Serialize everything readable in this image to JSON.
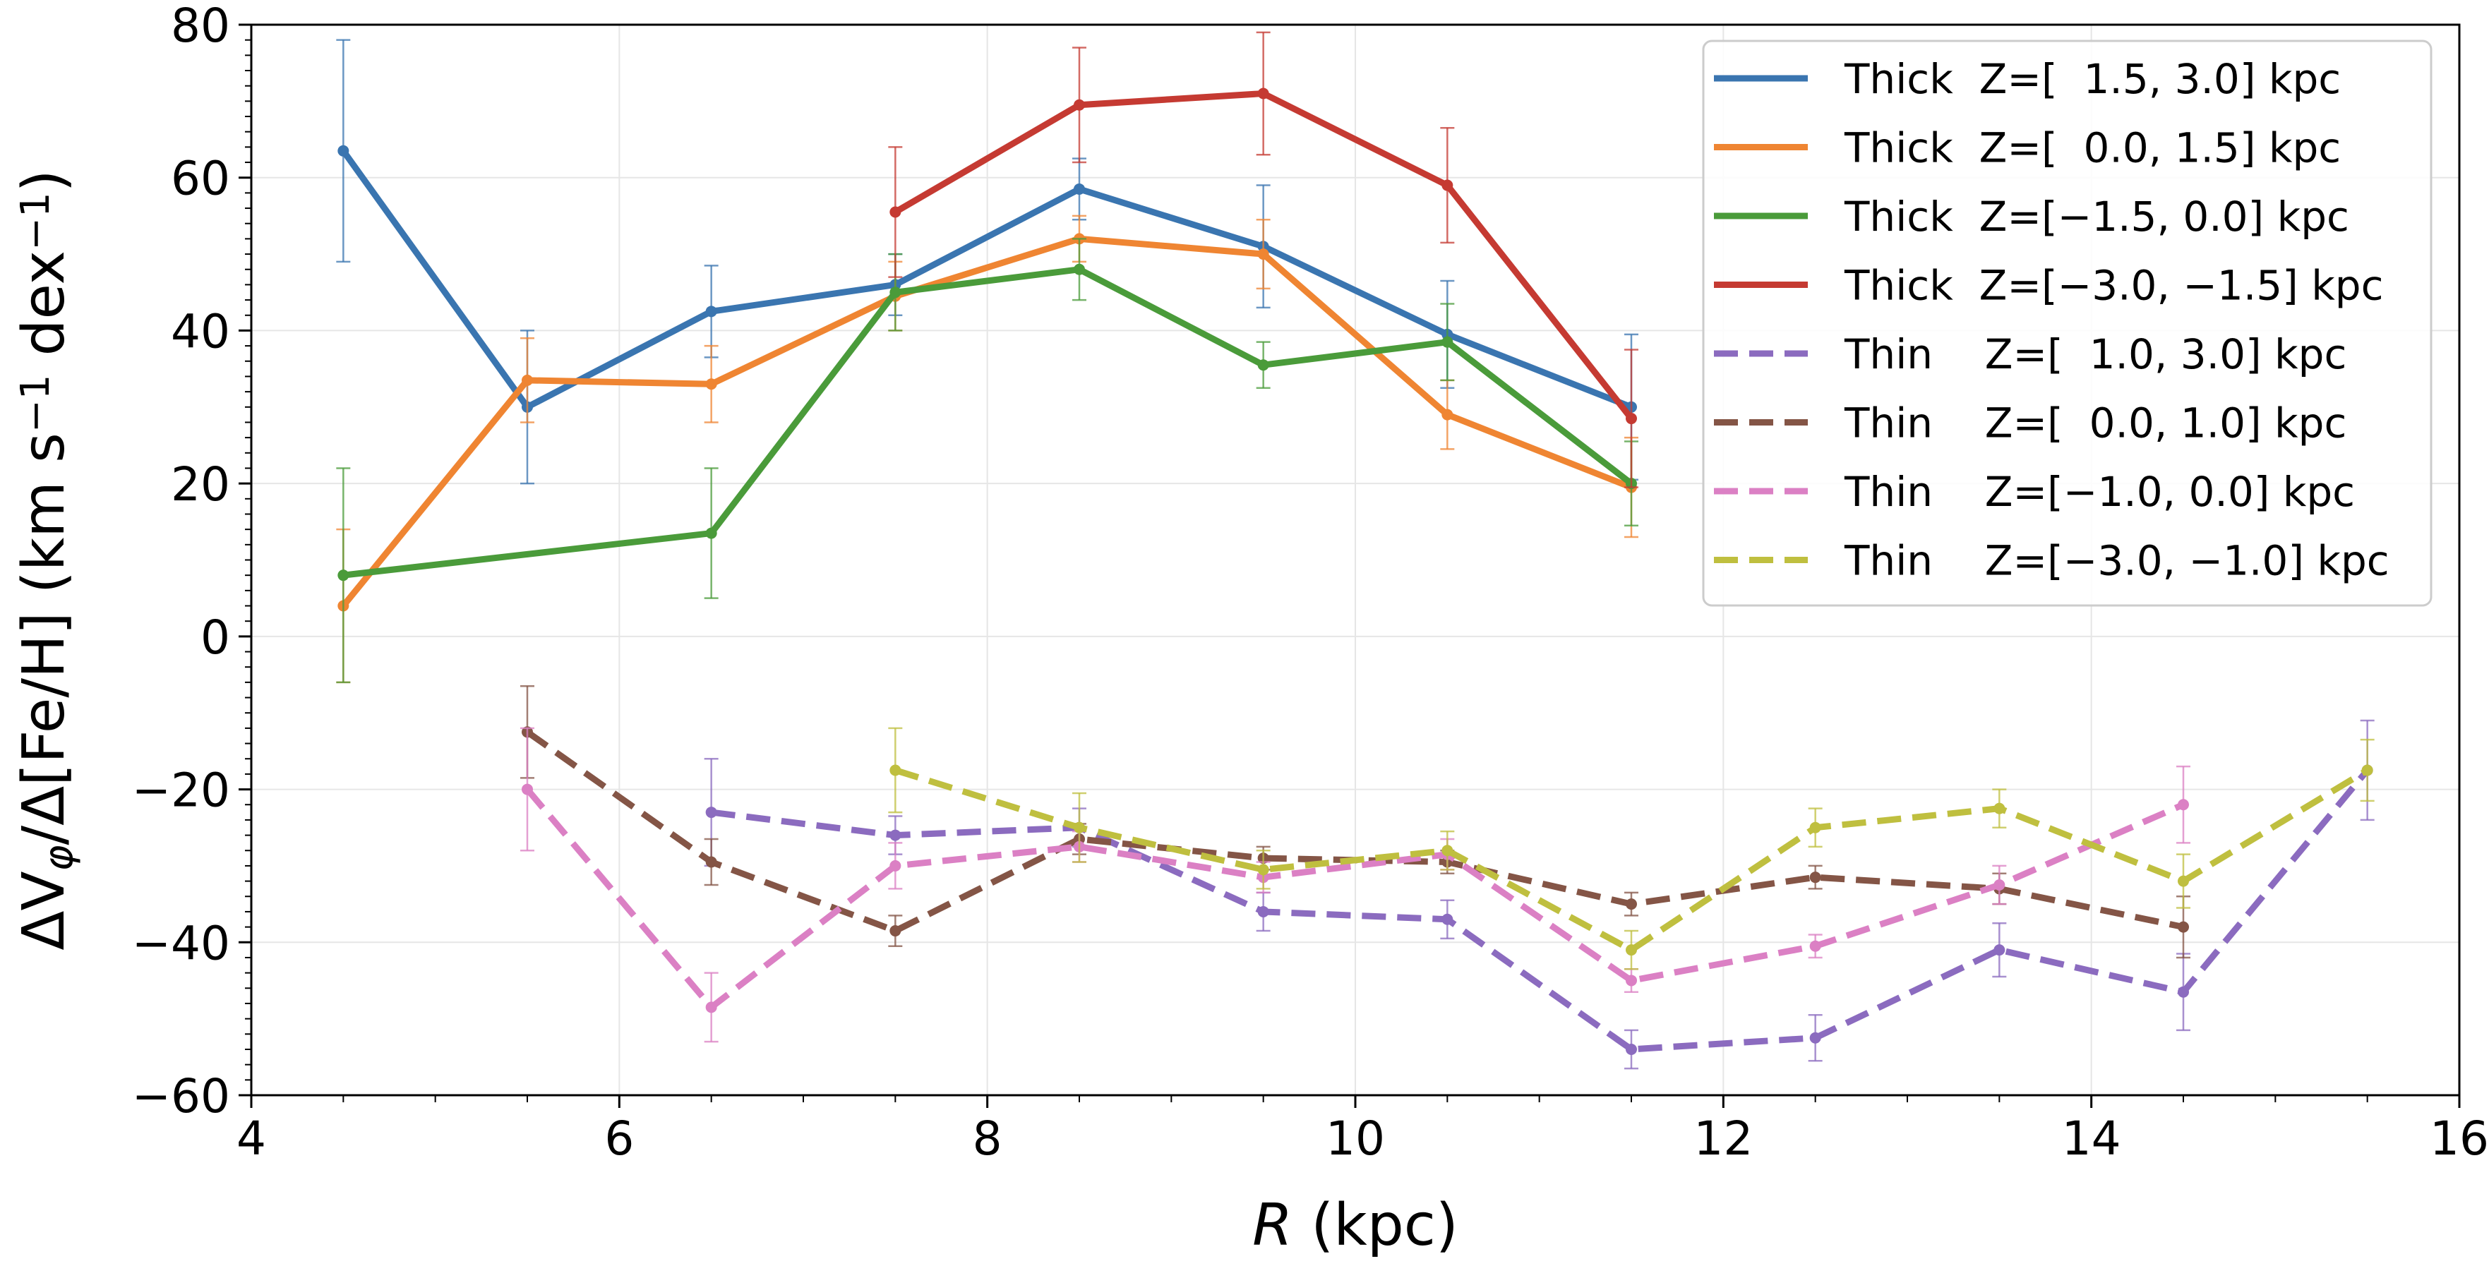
{
  "chart_data": {
    "type": "line",
    "xlabel": "R (kpc)",
    "ylabel": "ΔV_φ/Δ[Fe/H] (km s^-1 dex^-1)",
    "xlim": [
      4,
      16
    ],
    "ylim": [
      -60,
      80
    ],
    "xticks": [
      4,
      6,
      8,
      10,
      12,
      14,
      16
    ],
    "yticks": [
      -60,
      -40,
      -20,
      0,
      20,
      40,
      60,
      80
    ],
    "grid": true,
    "legend_position": "top-right",
    "series": [
      {
        "name": "Thick  Z=[  1.5, 3.0] kpc",
        "color": "#3a75b0",
        "dash": false,
        "x": [
          4.5,
          5.5,
          6.5,
          7.5,
          8.5,
          9.5,
          10.5,
          11.5
        ],
        "y": [
          63.5,
          30,
          42.5,
          46,
          58.5,
          51,
          39.5,
          30
        ],
        "err": [
          14.5,
          10,
          6,
          4,
          4,
          8,
          7,
          9.5
        ]
      },
      {
        "name": "Thick  Z=[  0.0, 1.5] kpc",
        "color": "#ef8532",
        "dash": false,
        "x": [
          4.5,
          5.5,
          6.5,
          7.5,
          8.5,
          9.5,
          10.5,
          11.5
        ],
        "y": [
          4,
          33.5,
          33,
          44.5,
          52,
          50,
          29,
          19.5
        ],
        "err": [
          10,
          5.5,
          5,
          4.5,
          3,
          4.5,
          4.5,
          6.5
        ]
      },
      {
        "name": "Thick  Z=[−1.5, 0.0] kpc",
        "color": "#4a9b3a",
        "dash": false,
        "x": [
          4.5,
          6.5,
          7.5,
          8.5,
          9.5,
          10.5,
          11.5
        ],
        "y": [
          8,
          13.5,
          45,
          48,
          35.5,
          38.5,
          20
        ],
        "err": [
          14,
          8.5,
          5,
          4,
          3,
          5,
          5.5
        ]
      },
      {
        "name": "Thick  Z=[−3.0, −1.5] kpc",
        "color": "#c53a32",
        "dash": false,
        "x": [
          7.5,
          8.5,
          9.5,
          10.5,
          11.5
        ],
        "y": [
          55.5,
          69.5,
          71,
          59,
          28.5
        ],
        "err": [
          8.5,
          7.5,
          8,
          7.5,
          9
        ]
      },
      {
        "name": "Thin    Z=[  1.0, 3.0] kpc",
        "color": "#8b6bbf",
        "dash": true,
        "x": [
          6.5,
          7.5,
          8.5,
          9.5,
          10.5,
          11.5,
          12.5,
          13.5,
          14.5,
          15.5
        ],
        "y": [
          -23,
          -26,
          -25,
          -36,
          -37,
          -54,
          -52.5,
          -41,
          -46.5,
          -17.5
        ],
        "err": [
          7,
          2.5,
          2.5,
          2.5,
          2.5,
          2.5,
          3,
          3.5,
          5,
          6.5
        ]
      },
      {
        "name": "Thin    Z=[  0.0, 1.0] kpc",
        "color": "#845546",
        "dash": true,
        "x": [
          5.5,
          6.5,
          7.5,
          8.5,
          9.5,
          10.5,
          11.5,
          12.5,
          13.5,
          14.5
        ],
        "y": [
          -12.5,
          -29.5,
          -38.5,
          -26.5,
          -29,
          -29.5,
          -35,
          -31.5,
          -33,
          -38
        ],
        "err": [
          6,
          3,
          2,
          2,
          1.5,
          1.5,
          1.5,
          1.5,
          2,
          4
        ]
      },
      {
        "name": "Thin    Z=[−1.0, 0.0] kpc",
        "color": "#db80c4",
        "dash": true,
        "x": [
          5.5,
          6.5,
          7.5,
          8.5,
          9.5,
          10.5,
          11.5,
          12.5,
          13.5,
          14.5
        ],
        "y": [
          -20,
          -48.5,
          -30,
          -27.5,
          -31.5,
          -28.5,
          -45,
          -40.5,
          -32.5,
          -22
        ],
        "err": [
          8,
          4.5,
          3,
          2,
          2,
          2,
          1.5,
          1.5,
          2.5,
          5
        ]
      },
      {
        "name": "Thin    Z=[−3.0, −1.0] kpc",
        "color": "#bfbf3f",
        "dash": true,
        "x": [
          7.5,
          8.5,
          9.5,
          10.5,
          11.5,
          12.5,
          13.5,
          14.5,
          15.5
        ],
        "y": [
          -17.5,
          -25,
          -30.5,
          -28,
          -41,
          -25,
          -22.5,
          -32,
          -17.5
        ],
        "err": [
          5.5,
          4.5,
          2.5,
          2.5,
          2.5,
          2.5,
          2.5,
          3.5,
          4
        ]
      }
    ]
  }
}
